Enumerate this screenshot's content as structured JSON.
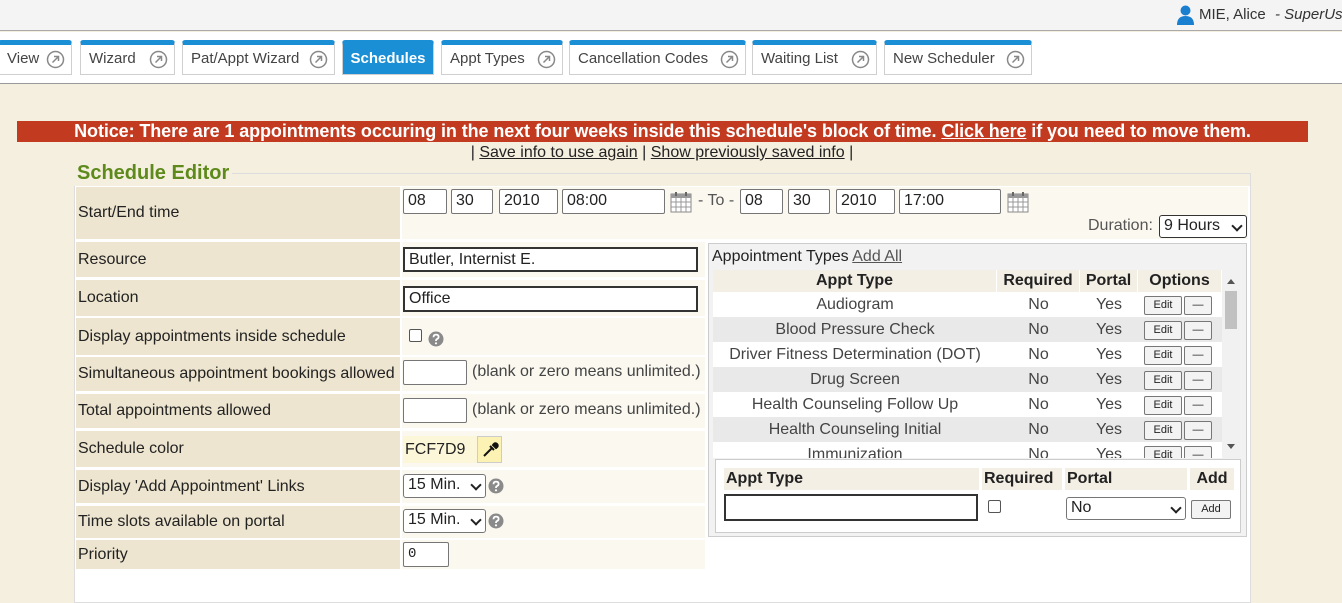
{
  "header": {
    "user": "MIE, Alice",
    "role": "- SuperUs"
  },
  "tabs": [
    "View",
    "Wizard",
    "Pat/Appt Wizard",
    "Schedules",
    "Appt Types",
    "Cancellation Codes",
    "Waiting List",
    "New Scheduler"
  ],
  "notice": {
    "text": "Notice: There are 1 appointments occuring in the next four weeks inside this schedule's block of time.",
    "link": "Click here",
    "tail": "if you need to move them."
  },
  "links": {
    "separator": "|",
    "items": [
      "Save info to use again",
      "Show previously saved info"
    ]
  },
  "editor": {
    "title": "Schedule Editor",
    "start_end": {
      "label": "Start/End time",
      "start": [
        "08",
        "30",
        "2010",
        "08:00"
      ],
      "to": "- To -",
      "end": [
        "08",
        "30",
        "2010",
        "17:00"
      ],
      "duration_label": "Duration:",
      "duration": "9 Hours"
    },
    "resource": {
      "label": "Resource",
      "value": "Butler, Internist E."
    },
    "location": {
      "label": "Location",
      "value": "Office"
    },
    "display_inside": {
      "label": "Display appointments inside schedule"
    },
    "simultaneous": {
      "label": "Simultaneous appointment bookings allowed",
      "hint": "(blank or zero means unlimited.)"
    },
    "total": {
      "label": "Total appointments allowed",
      "hint": "(blank or zero means unlimited.)"
    },
    "color": {
      "label": "Schedule color",
      "value": "FCF7D9"
    },
    "add_links": {
      "label": "Display 'Add Appointment' Links",
      "value": "15 Min."
    },
    "portal_slots": {
      "label": "Time slots available on portal",
      "value": "15 Min."
    },
    "priority": {
      "label": "Priority",
      "value": "0"
    }
  },
  "appointment_types": {
    "title": "Appointment Types",
    "add_all": "Add All",
    "columns": [
      "Appt Type",
      "Required",
      "Portal",
      "Options"
    ],
    "rows": [
      [
        "Audiogram",
        "No",
        "Yes"
      ],
      [
        "Blood Pressure Check",
        "No",
        "Yes"
      ],
      [
        "Driver Fitness Determination (DOT)",
        "No",
        "Yes"
      ],
      [
        "Drug Screen",
        "No",
        "Yes"
      ],
      [
        "Health Counseling Follow Up",
        "No",
        "Yes"
      ],
      [
        "Health Counseling Initial",
        "No",
        "Yes"
      ],
      [
        "Immunization",
        "No",
        "Yes"
      ]
    ],
    "edit": "Edit",
    "remove": "—"
  },
  "add_form": {
    "columns": [
      "Appt Type",
      "Required",
      "Portal",
      "Add"
    ],
    "portal": "No",
    "button": "Add"
  }
}
